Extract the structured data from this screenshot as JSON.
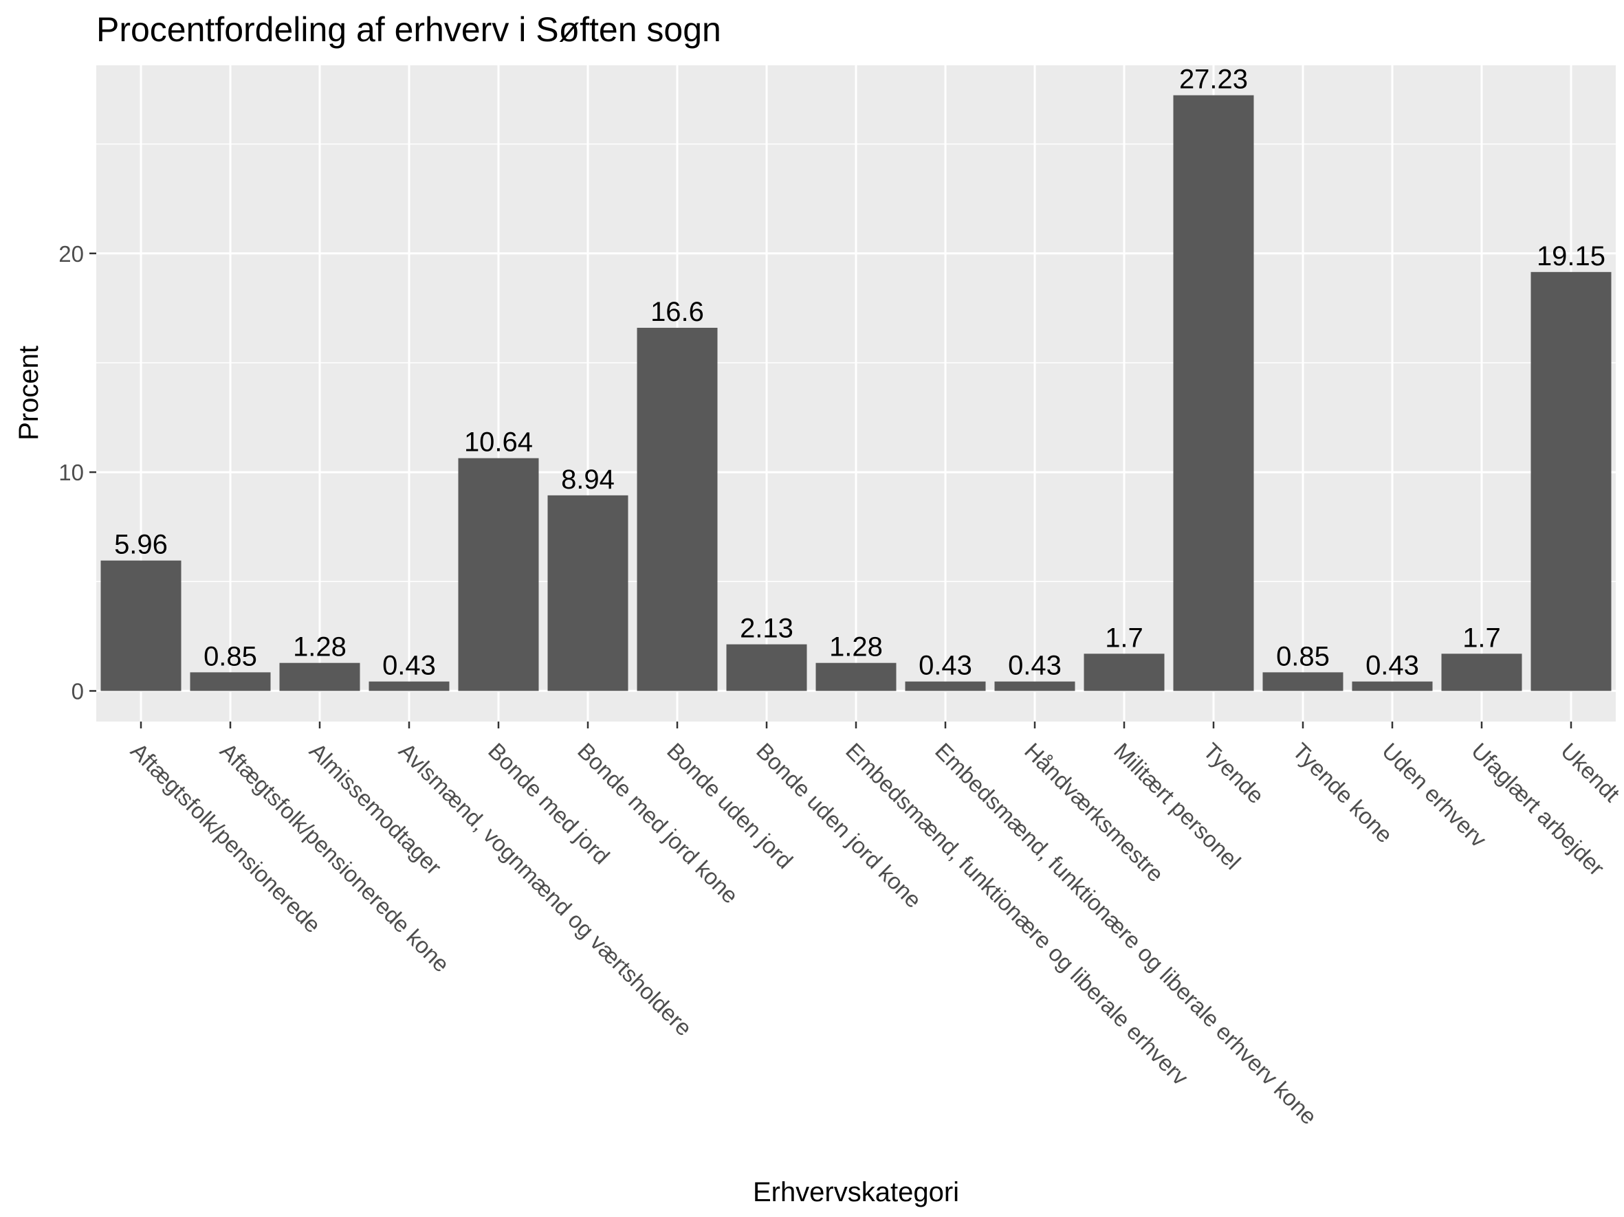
{
  "chart_data": {
    "type": "bar",
    "title": "Procentfordeling af erhverv i Søften sogn",
    "xlabel": "Erhvervskategori",
    "ylabel": "Procent",
    "ylim": [
      -1.4,
      28.6
    ],
    "yticks": [
      0,
      10,
      20
    ],
    "grid": true,
    "bar_color": "#595959",
    "panel_color": "#ebebeb",
    "categories": [
      "Aftægtsfolk/pensionerede",
      "Aftægtsfolk/pensionerede kone",
      "Almissemodtager",
      "Avlsmænd, vognmænd og værtsholdere",
      "Bonde med jord",
      "Bonde med jord kone",
      "Bonde uden jord",
      "Bonde uden jord kone",
      "Embedsmænd, funktionære og liberale erhverv",
      "Embedsmænd, funktionære og liberale erhverv kone",
      "Håndværksmestre",
      "Militært personel",
      "Tyende",
      "Tyende kone",
      "Uden erhverv",
      "Ufaglært arbejder",
      "Ukendt"
    ],
    "values": [
      5.96,
      0.85,
      1.28,
      0.43,
      10.64,
      8.94,
      16.6,
      2.13,
      1.28,
      0.43,
      0.43,
      1.7,
      27.23,
      0.85,
      0.43,
      1.7,
      19.15
    ],
    "value_labels": [
      "5.96",
      "0.85",
      "1.28",
      "0.43",
      "10.64",
      "8.94",
      "16.6",
      "2.13",
      "1.28",
      "0.43",
      "0.43",
      "1.7",
      "27.23",
      "0.85",
      "0.43",
      "1.7",
      "19.15"
    ]
  }
}
